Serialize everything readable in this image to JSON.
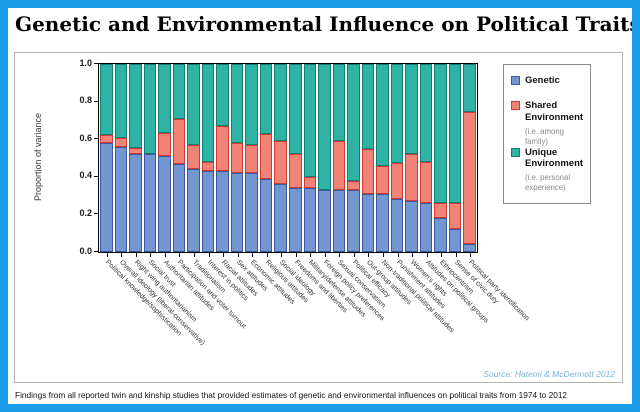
{
  "title": "Genetic and Environmental Influence on Political Traits",
  "caption": "Findings from all reported twin and kinship studies that provided estimates of genetic and environmental influences on political traits from 1974 to 2012",
  "source": "Source: Hatemi & McDermott 2012",
  "colors": {
    "frame_border": "#1b9de9",
    "genetic_fill": "#7397d1",
    "genetic_edge": "#3d56a6",
    "shared_fill": "#f18376",
    "shared_edge": "#d13c31",
    "unique_fill": "#2fb3a6",
    "unique_edge": "#157e74",
    "source_text": "#79b3da"
  },
  "legend": {
    "items": [
      {
        "label": "Genetic",
        "note": ""
      },
      {
        "label": "Shared Environment",
        "note": "(i.e. among family)"
      },
      {
        "label": "Unique Environment",
        "note": "(i.e. personal experience)"
      }
    ]
  },
  "chart_data": {
    "type": "bar",
    "stacked": true,
    "title": "Genetic and Environmental Influence on Political Traits",
    "xlabel": "",
    "ylabel": "Proportion of variance",
    "ylim": [
      0,
      1
    ],
    "yticks": [
      "0.0",
      "0.2",
      "0.4",
      "0.6",
      "0.8",
      "1.0"
    ],
    "grid": false,
    "legend_position": "right",
    "categories": [
      "Political knowledge/sophistication",
      "Overall ideology (liberal-conservative)",
      "Right wing authoritarianism",
      "Social trust",
      "Authoritarian attitudes",
      "Participation and voter turnout",
      "Traditionalism",
      "Interest in politics",
      "Racial attitudes",
      "Sex attitudes",
      "Economic attitudes",
      "Religious attitudes",
      "Social ideology",
      "Freedoms and liberties",
      "Military/defense attitudes",
      "Foreign policy preferences",
      "Sexual conservatism",
      "Political efficacy",
      "Out-group attitudes",
      "Non-traditional political attitudes",
      "Punishment attitudes",
      "Women's rights",
      "Attitudes on political groups",
      "Ethnocentrism",
      "Sense of civic duty",
      "Political party identification"
    ],
    "series": [
      {
        "name": "Genetic",
        "values": [
          0.58,
          0.56,
          0.52,
          0.52,
          0.51,
          0.47,
          0.44,
          0.43,
          0.43,
          0.42,
          0.42,
          0.39,
          0.36,
          0.34,
          0.34,
          0.33,
          0.33,
          0.33,
          0.31,
          0.31,
          0.28,
          0.27,
          0.26,
          0.18,
          0.12,
          0.04
        ]
      },
      {
        "name": "Shared Environment",
        "values": [
          0.04,
          0.05,
          0.03,
          0.0,
          0.12,
          0.24,
          0.13,
          0.05,
          0.24,
          0.16,
          0.15,
          0.24,
          0.23,
          0.18,
          0.06,
          0.0,
          0.26,
          0.05,
          0.24,
          0.15,
          0.19,
          0.25,
          0.22,
          0.08,
          0.14,
          0.7
        ]
      },
      {
        "name": "Unique Environment",
        "values": [
          0.38,
          0.39,
          0.45,
          0.48,
          0.37,
          0.29,
          0.43,
          0.52,
          0.33,
          0.42,
          0.43,
          0.37,
          0.41,
          0.48,
          0.6,
          0.67,
          0.41,
          0.62,
          0.45,
          0.54,
          0.53,
          0.48,
          0.52,
          0.74,
          0.74,
          0.26
        ]
      }
    ]
  }
}
